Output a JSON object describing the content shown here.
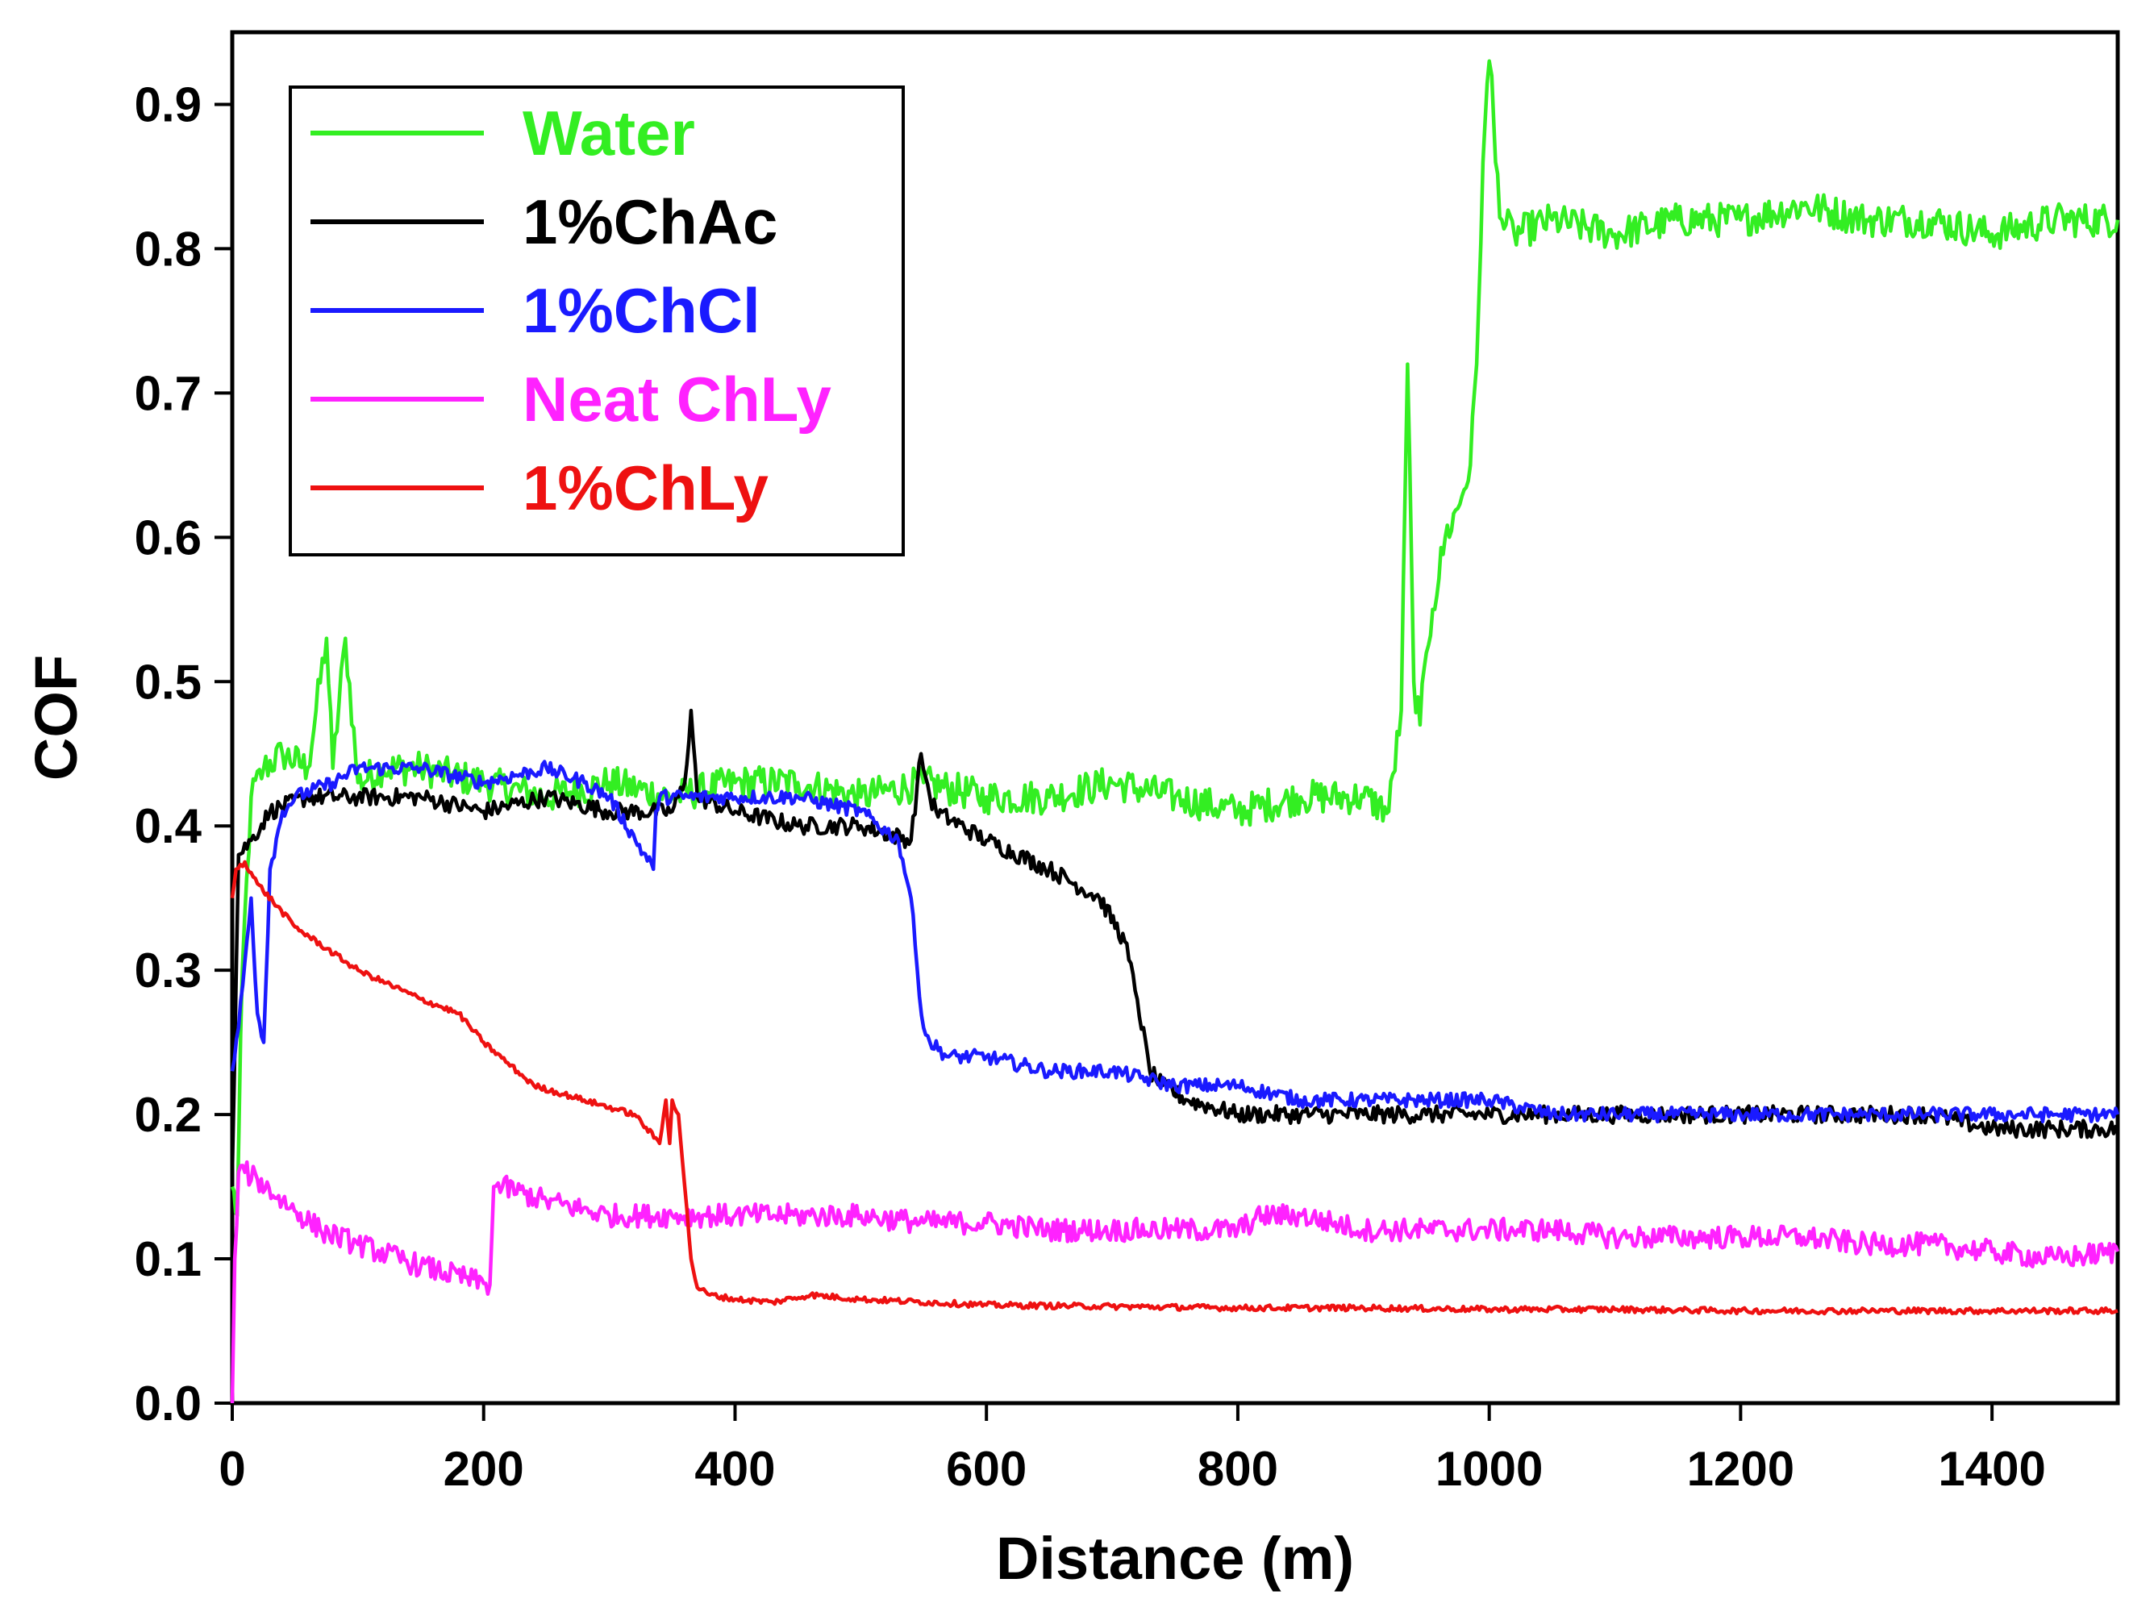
{
  "chart_data": {
    "type": "line",
    "title": "",
    "xlabel": "Distance (m)",
    "ylabel": "COF",
    "xlim": [
      0,
      1500
    ],
    "ylim": [
      0.0,
      0.95
    ],
    "xticks": [
      0,
      200,
      400,
      600,
      800,
      1000,
      1200,
      1400
    ],
    "xtick_labels": [
      "0",
      "200",
      "400",
      "600",
      "800",
      "1000",
      "1200",
      "1400"
    ],
    "yticks": [
      0.0,
      0.1,
      0.2,
      0.3,
      0.4,
      0.5,
      0.6,
      0.7,
      0.8,
      0.9
    ],
    "ytick_labels": [
      "0.0",
      "0.1",
      "0.2",
      "0.3",
      "0.4",
      "0.5",
      "0.6",
      "0.7",
      "0.8",
      "0.9"
    ],
    "grid": false,
    "legend": "top-left",
    "series": [
      {
        "name": "Water",
        "color": "#33ee22",
        "x": [
          0,
          4,
          8,
          15,
          25,
          40,
          60,
          75,
          80,
          90,
          100,
          120,
          150,
          200,
          250,
          300,
          350,
          400,
          450,
          500,
          550,
          600,
          650,
          700,
          750,
          800,
          850,
          900,
          920,
          930,
          935,
          940,
          945,
          950,
          955,
          965,
          975,
          985,
          990,
          995,
          1000,
          1002,
          1005,
          1010,
          1020,
          1050,
          1100,
          1150,
          1200,
          1250,
          1300,
          1350,
          1400,
          1450,
          1500
        ],
        "y": [
          0.15,
          0.13,
          0.3,
          0.42,
          0.44,
          0.45,
          0.44,
          0.53,
          0.44,
          0.53,
          0.43,
          0.44,
          0.44,
          0.43,
          0.42,
          0.43,
          0.42,
          0.43,
          0.43,
          0.42,
          0.43,
          0.42,
          0.42,
          0.43,
          0.42,
          0.41,
          0.42,
          0.42,
          0.41,
          0.48,
          0.72,
          0.5,
          0.47,
          0.52,
          0.55,
          0.6,
          0.62,
          0.65,
          0.72,
          0.86,
          0.93,
          0.92,
          0.86,
          0.82,
          0.81,
          0.82,
          0.81,
          0.82,
          0.82,
          0.83,
          0.82,
          0.82,
          0.81,
          0.82,
          0.82
        ]
      },
      {
        "name": "1%ChAc",
        "color": "#000000",
        "x": [
          0,
          5,
          15,
          30,
          60,
          100,
          150,
          200,
          250,
          300,
          350,
          360,
          365,
          370,
          400,
          450,
          500,
          540,
          548,
          555,
          560,
          600,
          650,
          690,
          710,
          720,
          730,
          740,
          760,
          800,
          850,
          900,
          950,
          1000,
          1050,
          1100,
          1150,
          1200,
          1250,
          1300,
          1350,
          1400,
          1450,
          1500
        ],
        "y": [
          0.16,
          0.38,
          0.39,
          0.41,
          0.42,
          0.42,
          0.42,
          0.41,
          0.42,
          0.41,
          0.41,
          0.43,
          0.48,
          0.42,
          0.41,
          0.4,
          0.4,
          0.39,
          0.45,
          0.42,
          0.41,
          0.39,
          0.37,
          0.35,
          0.32,
          0.28,
          0.23,
          0.22,
          0.21,
          0.2,
          0.2,
          0.2,
          0.2,
          0.2,
          0.2,
          0.2,
          0.2,
          0.2,
          0.2,
          0.2,
          0.2,
          0.19,
          0.19,
          0.19
        ]
      },
      {
        "name": "1%ChCl",
        "color": "#1a1aff",
        "x": [
          0,
          5,
          15,
          20,
          25,
          30,
          40,
          50,
          80,
          100,
          150,
          200,
          250,
          280,
          300,
          335,
          337,
          340,
          400,
          450,
          500,
          530,
          540,
          545,
          550,
          555,
          570,
          600,
          650,
          700,
          750,
          800,
          850,
          900,
          950,
          1000,
          1050,
          1100,
          1150,
          1200,
          1250,
          1300,
          1350,
          1400,
          1450,
          1500
        ],
        "y": [
          0.23,
          0.26,
          0.35,
          0.27,
          0.25,
          0.37,
          0.41,
          0.42,
          0.43,
          0.44,
          0.44,
          0.43,
          0.44,
          0.43,
          0.42,
          0.37,
          0.41,
          0.42,
          0.42,
          0.42,
          0.41,
          0.39,
          0.35,
          0.3,
          0.26,
          0.25,
          0.24,
          0.24,
          0.23,
          0.23,
          0.22,
          0.22,
          0.21,
          0.21,
          0.21,
          0.21,
          0.2,
          0.2,
          0.2,
          0.2,
          0.2,
          0.2,
          0.2,
          0.2,
          0.2,
          0.2
        ]
      },
      {
        "name": "Neat ChLy",
        "color": "#ff22ff",
        "x": [
          0,
          2,
          5,
          10,
          20,
          40,
          70,
          100,
          150,
          200,
          205,
          208,
          215,
          250,
          300,
          350,
          400,
          450,
          500,
          550,
          600,
          650,
          700,
          750,
          800,
          820,
          850,
          900,
          950,
          1000,
          1050,
          1100,
          1150,
          1200,
          1250,
          1300,
          1350,
          1400,
          1450,
          1500
        ],
        "y": [
          0.0,
          0.1,
          0.16,
          0.16,
          0.155,
          0.14,
          0.12,
          0.11,
          0.095,
          0.083,
          0.082,
          0.15,
          0.15,
          0.14,
          0.13,
          0.13,
          0.13,
          0.13,
          0.13,
          0.125,
          0.125,
          0.12,
          0.12,
          0.12,
          0.12,
          0.13,
          0.13,
          0.12,
          0.12,
          0.12,
          0.12,
          0.115,
          0.115,
          0.115,
          0.115,
          0.11,
          0.11,
          0.105,
          0.1,
          0.105
        ]
      },
      {
        "name": "1%ChLy",
        "color": "#ee1111",
        "x": [
          0,
          3,
          10,
          20,
          50,
          100,
          150,
          180,
          200,
          240,
          280,
          320,
          340,
          345,
          348,
          350,
          355,
          360,
          365,
          370,
          380,
          400,
          430,
          460,
          500,
          600,
          700,
          800,
          900,
          1000,
          1100,
          1200,
          1300,
          1400,
          1500
        ],
        "y": [
          0.35,
          0.37,
          0.375,
          0.36,
          0.33,
          0.3,
          0.28,
          0.27,
          0.25,
          0.22,
          0.21,
          0.2,
          0.18,
          0.21,
          0.18,
          0.21,
          0.2,
          0.15,
          0.1,
          0.08,
          0.075,
          0.072,
          0.07,
          0.075,
          0.072,
          0.068,
          0.067,
          0.066,
          0.066,
          0.065,
          0.065,
          0.064,
          0.064,
          0.064,
          0.064
        ]
      }
    ]
  }
}
